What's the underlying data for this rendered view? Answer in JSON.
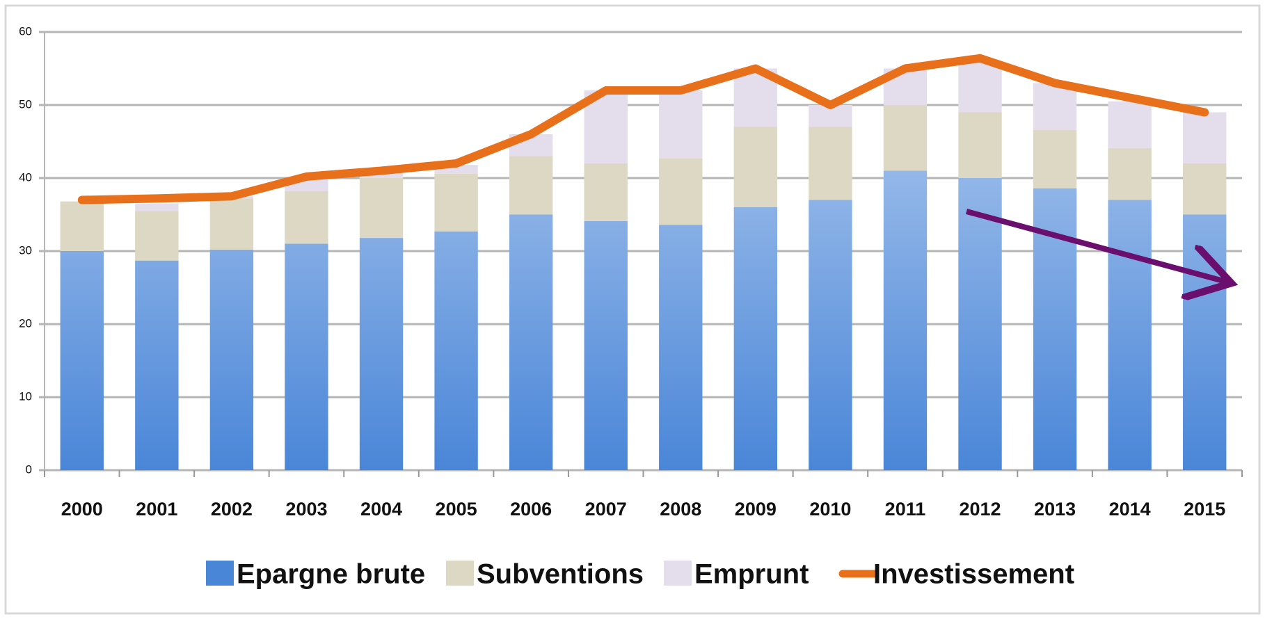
{
  "chart_data": {
    "type": "bar",
    "categories": [
      "2000",
      "2001",
      "2002",
      "2003",
      "2004",
      "2005",
      "2006",
      "2007",
      "2008",
      "2009",
      "2010",
      "2011",
      "2012",
      "2013",
      "2014",
      "2015"
    ],
    "series": [
      {
        "name": "Epargne brute",
        "color": "#4a86d8",
        "values": [
          30,
          28.7,
          30.2,
          31,
          31.8,
          32.7,
          35,
          34.1,
          33.6,
          36,
          37,
          41,
          40,
          38.6,
          37,
          35
        ]
      },
      {
        "name": "Subventions",
        "color": "#dcd8c3",
        "values": [
          6.8,
          6.8,
          7,
          7.2,
          8.2,
          7.9,
          8,
          7.9,
          9.1,
          11,
          10,
          9,
          9,
          8,
          7.1,
          7
        ]
      },
      {
        "name": "Emprunt",
        "color": "#e4deec",
        "values": [
          0,
          1,
          0.3,
          1.8,
          0.8,
          1.2,
          3,
          10,
          9.3,
          8,
          3,
          5,
          7,
          6.4,
          6.4,
          7
        ]
      },
      {
        "name": "Investissement",
        "type": "line",
        "color": "#e8701a",
        "values": [
          37,
          37.2,
          37.5,
          40.2,
          41,
          42,
          46,
          52,
          52,
          55,
          50,
          55,
          56.4,
          53,
          51,
          49
        ]
      }
    ],
    "stacked": true,
    "ylim": [
      0,
      60
    ],
    "yticks": [
      0,
      10,
      20,
      30,
      40,
      50,
      60
    ],
    "grid": true
  }
}
